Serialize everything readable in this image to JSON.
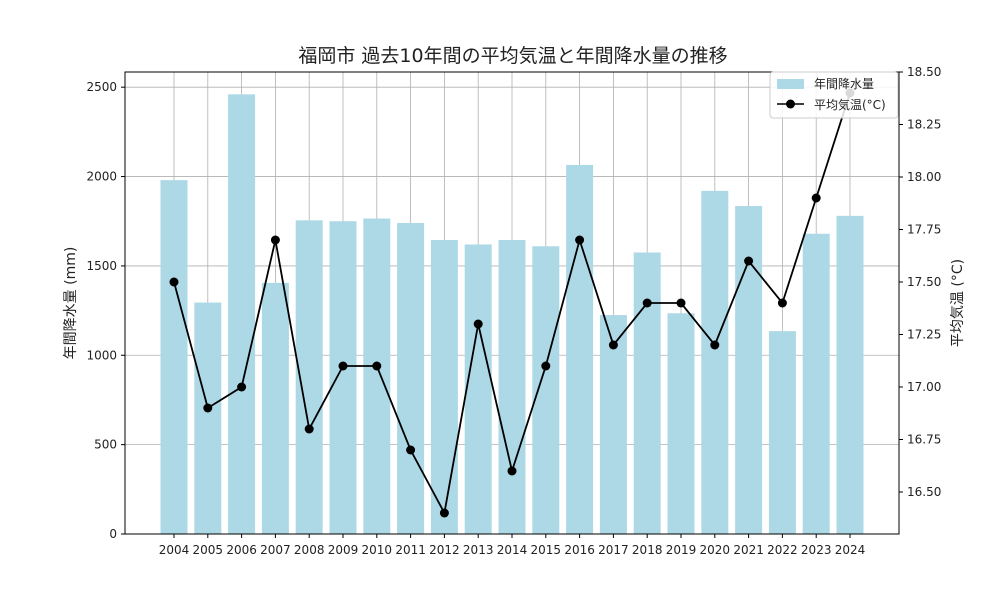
{
  "chart_data": {
    "type": "bar",
    "title": "福岡市 過去10年間の平均気温と年間降水量の推移",
    "categories": [
      "2004",
      "2005",
      "2006",
      "2007",
      "2008",
      "2009",
      "2010",
      "2011",
      "2012",
      "2013",
      "2014",
      "2015",
      "2016",
      "2017",
      "2018",
      "2019",
      "2020",
      "2021",
      "2022",
      "2023",
      "2024"
    ],
    "series": [
      {
        "name": "年間降水量",
        "kind": "bar",
        "axis": "left",
        "color": "#add8e6",
        "values": [
          1980,
          1295,
          2460,
          1405,
          1755,
          1750,
          1765,
          1740,
          1645,
          1620,
          1645,
          1610,
          2065,
          1225,
          1575,
          1235,
          1920,
          1835,
          1135,
          1680,
          1780
        ]
      },
      {
        "name": "平均気温(°C)",
        "kind": "line",
        "axis": "right",
        "color": "#000000",
        "values": [
          17.5,
          16.9,
          17.0,
          17.7,
          16.8,
          17.1,
          17.1,
          16.7,
          16.4,
          17.3,
          16.6,
          17.1,
          17.7,
          17.2,
          17.4,
          17.4,
          17.2,
          17.6,
          17.4,
          17.9,
          18.4
        ]
      }
    ],
    "left_axis": {
      "label": "年間降水量 (mm)",
      "ylim": [
        0,
        2585
      ],
      "ticks": [
        0,
        500,
        1000,
        1500,
        2000,
        2500
      ],
      "tick_labels": [
        "0",
        "500",
        "1000",
        "1500",
        "2000",
        "2500"
      ]
    },
    "right_axis": {
      "label": "平均気温 (°C)",
      "ylim": [
        16.3,
        18.5
      ],
      "ticks": [
        16.5,
        16.75,
        17.0,
        17.25,
        17.5,
        17.75,
        18.0,
        18.25,
        18.5
      ],
      "tick_labels": [
        "16.50",
        "16.75",
        "17.00",
        "17.25",
        "17.50",
        "17.75",
        "18.00",
        "18.25",
        "18.50"
      ]
    },
    "grid": true,
    "legend_position": "top-right"
  }
}
